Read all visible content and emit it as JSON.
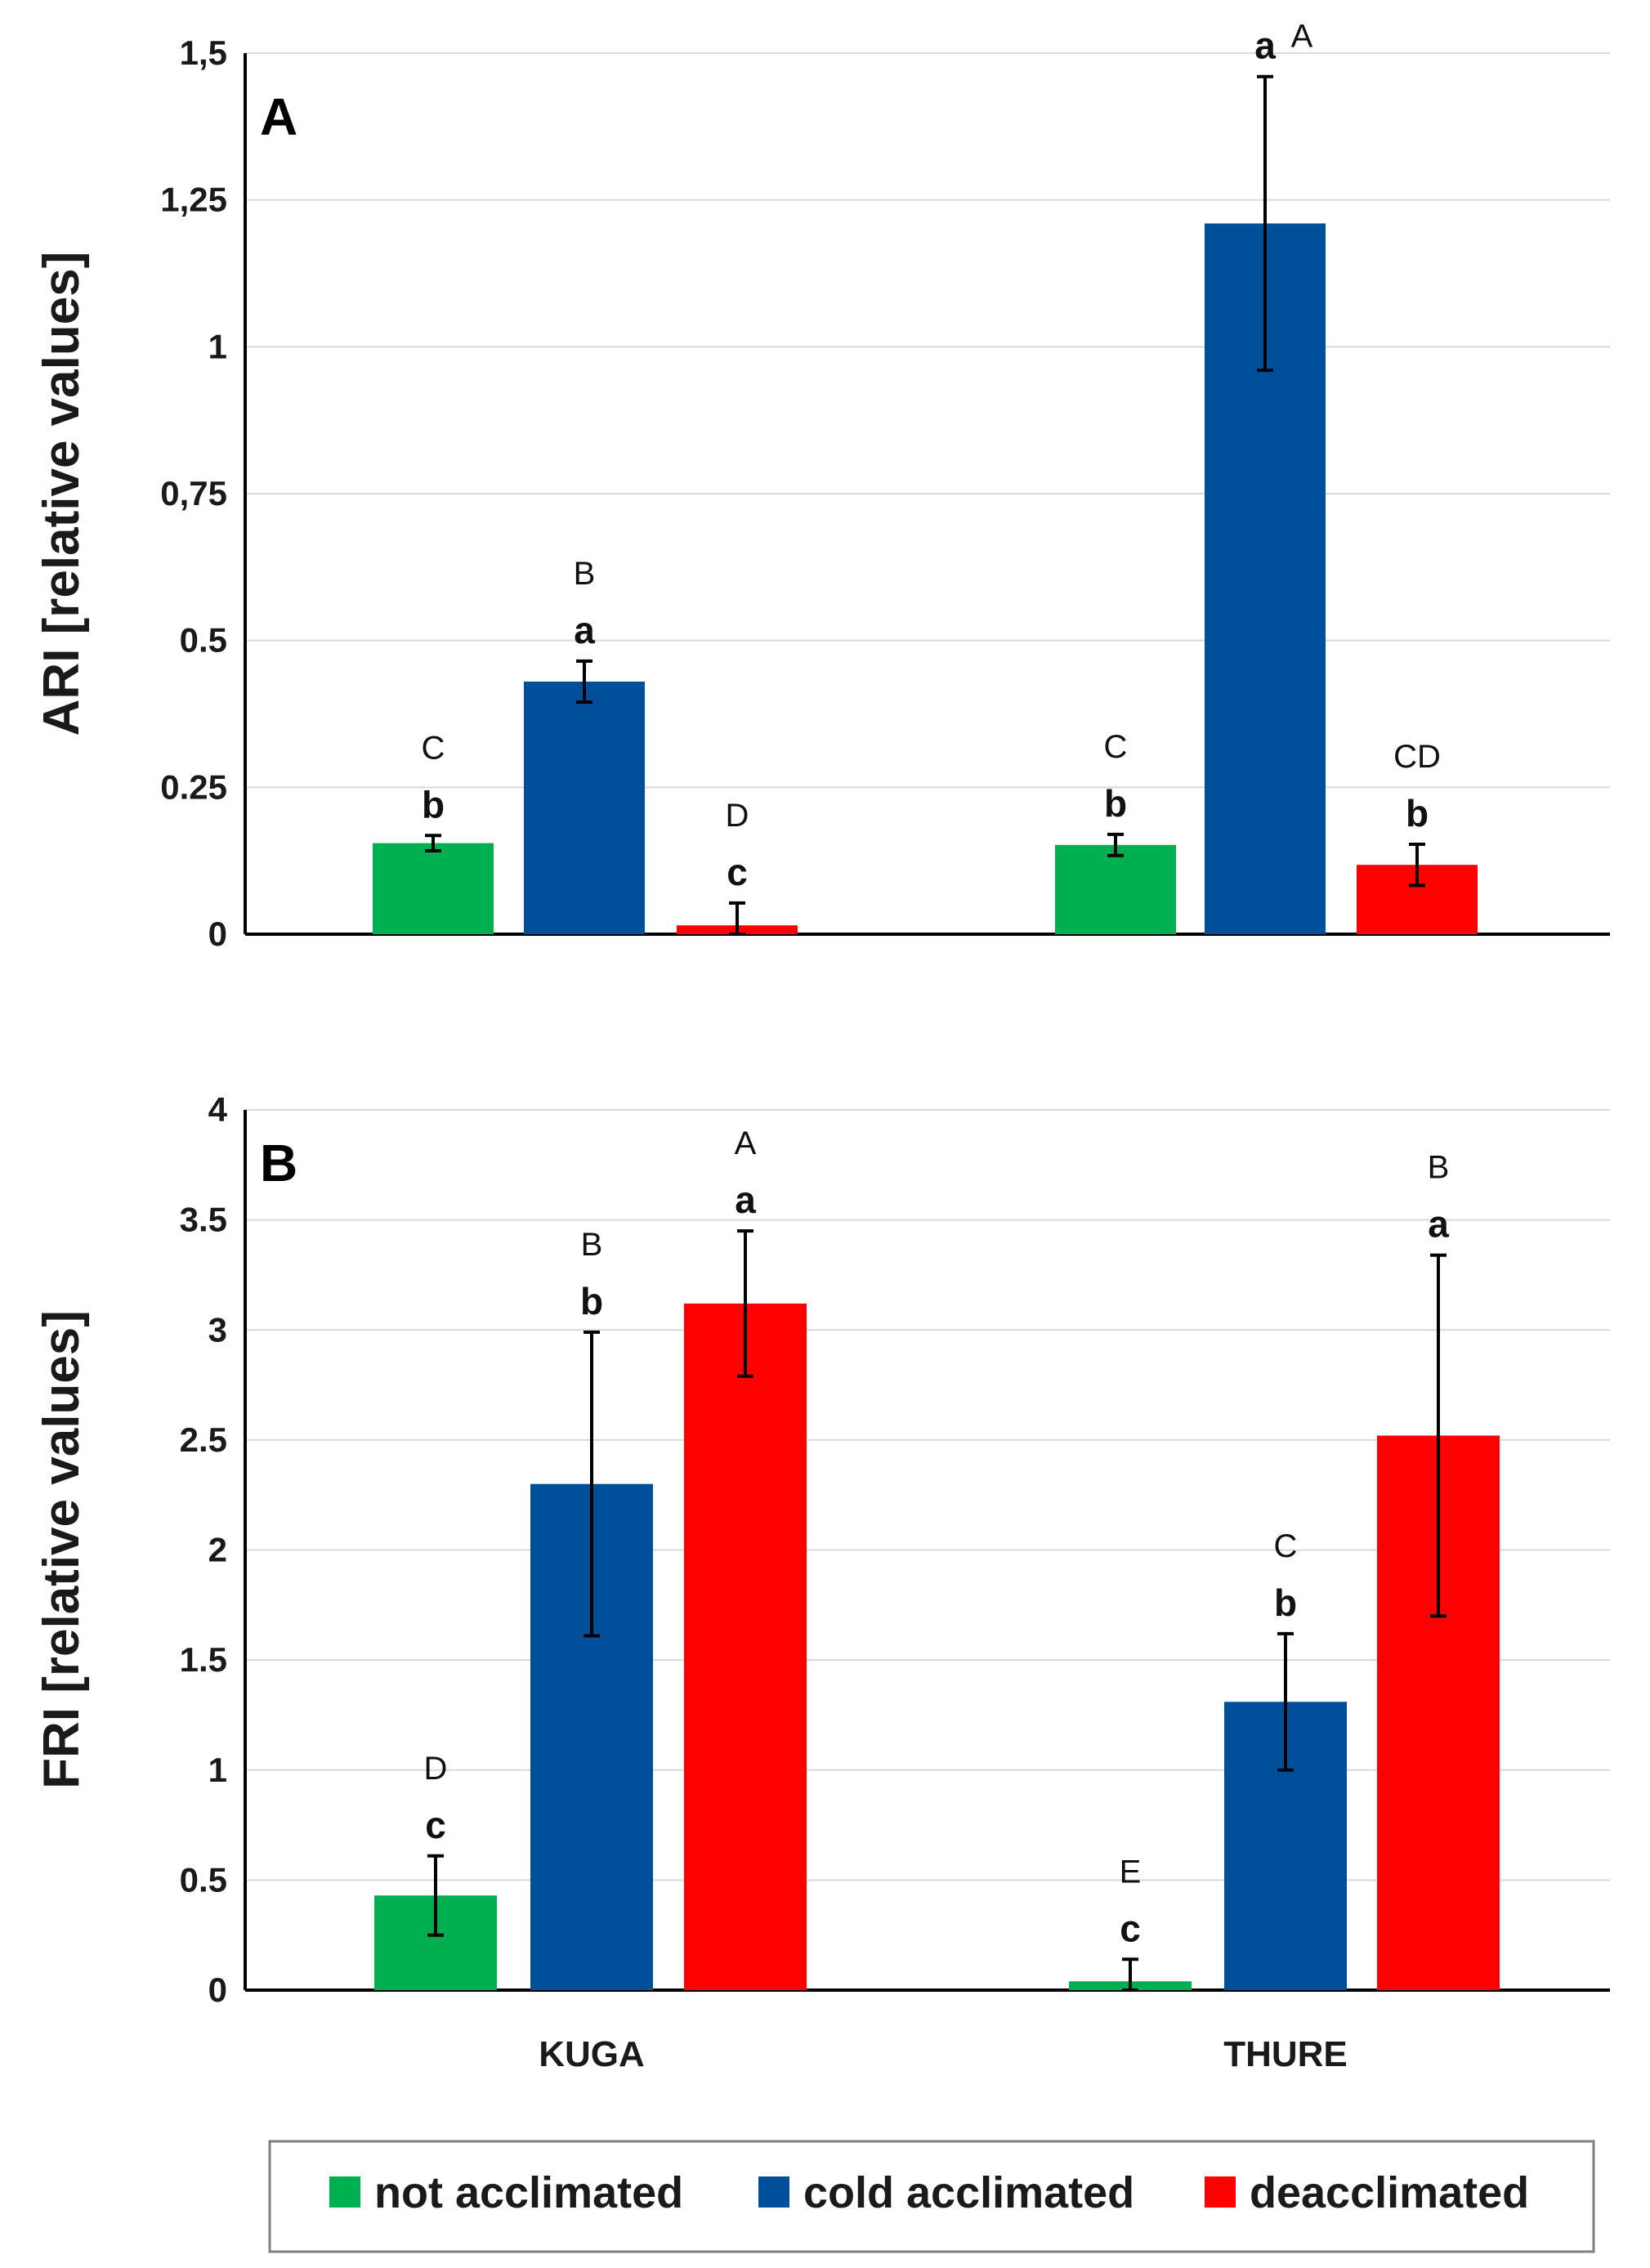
{
  "chart_data": [
    {
      "panel": "A",
      "type": "bar",
      "ylabel": "ARI [relative values]",
      "ylim": [
        0,
        1.5
      ],
      "yticks": [
        0,
        0.25,
        0.5,
        0.75,
        1,
        1.25,
        1.5
      ],
      "ytick_labels": [
        "0",
        "0.25",
        "0.5",
        "0,75",
        "1",
        "1,25",
        "1,5"
      ],
      "categories": [
        "KUGA",
        "THURE"
      ],
      "series": [
        {
          "name": "not acclimated",
          "values": [
            0.155,
            0.152
          ],
          "errors": [
            0.013,
            0.018
          ],
          "lower_labels": [
            "b",
            "b"
          ],
          "upper_labels": [
            "C",
            "C"
          ]
        },
        {
          "name": "cold acclimated",
          "values": [
            0.43,
            1.21
          ],
          "errors": [
            0.035,
            0.25
          ],
          "lower_labels": [
            "a",
            "a"
          ],
          "upper_labels": [
            "B",
            "A"
          ]
        },
        {
          "name": "deacclimated",
          "values": [
            0.015,
            0.118
          ],
          "errors": [
            0.038,
            0.035
          ],
          "lower_labels": [
            "c",
            "b"
          ],
          "upper_labels": [
            "D",
            "CD"
          ]
        }
      ]
    },
    {
      "panel": "B",
      "type": "bar",
      "ylabel": "FRI [relative values]",
      "ylim": [
        0,
        4
      ],
      "yticks": [
        0,
        0.5,
        1,
        1.5,
        2,
        2.5,
        3,
        3.5,
        4
      ],
      "ytick_labels": [
        "0",
        "0.5",
        "1",
        "1.5",
        "2",
        "2.5",
        "3",
        "3.5",
        "4"
      ],
      "categories": [
        "KUGA",
        "THURE"
      ],
      "series": [
        {
          "name": "not acclimated",
          "values": [
            0.43,
            0.04
          ],
          "errors": [
            0.18,
            0.1
          ],
          "lower_labels": [
            "c",
            "c"
          ],
          "upper_labels": [
            "D",
            "E"
          ]
        },
        {
          "name": "cold acclimated",
          "values": [
            2.3,
            1.31
          ],
          "errors": [
            0.69,
            0.31
          ],
          "lower_labels": [
            "b",
            "b"
          ],
          "upper_labels": [
            "B",
            "C"
          ]
        },
        {
          "name": "deacclimated",
          "values": [
            3.12,
            2.52
          ],
          "errors": [
            0.33,
            0.82
          ],
          "lower_labels": [
            "a",
            "a"
          ],
          "upper_labels": [
            "A",
            "B"
          ]
        }
      ]
    }
  ],
  "legend": {
    "position": "bottom",
    "items": [
      {
        "label": "not acclimated",
        "color": "#00b050"
      },
      {
        "label": "cold acclimated",
        "color": "#004f9a"
      },
      {
        "label": "deacclimated",
        "color": "#ff0000"
      }
    ]
  },
  "colors": [
    "#00b050",
    "#004f9a",
    "#ff0000"
  ]
}
